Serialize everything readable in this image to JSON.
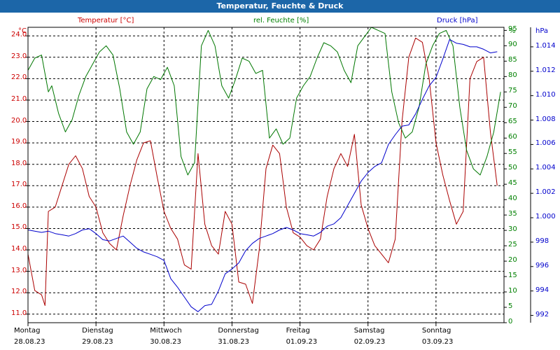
{
  "window": {
    "title": "Temperatur, Feuchte & Druck"
  },
  "chart_data": {
    "type": "line",
    "title": "Temperatur, Feuchte & Druck",
    "x_categories": [
      {
        "day": "Montag",
        "date": "28.08.23"
      },
      {
        "day": "Dienstag",
        "date": "29.08.23"
      },
      {
        "day": "Mittwoch",
        "date": "30.08.23"
      },
      {
        "day": "Donnerstag",
        "date": "31.08.23"
      },
      {
        "day": "Freitag",
        "date": "01.09.23"
      },
      {
        "day": "Samstag",
        "date": "02.09.23"
      },
      {
        "day": "Sonntag",
        "date": "03.09.23"
      }
    ],
    "x_range_days": [
      0,
      7
    ],
    "grid": true,
    "axes": {
      "temperature": {
        "label": "Temperatur [°C]",
        "unit": "°C",
        "range": [
          10.6,
          24.4
        ],
        "ticks": [
          "11.0",
          "12.0",
          "13.0",
          "14.0",
          "15.0",
          "16.0",
          "17.0",
          "18.0",
          "19.0",
          "20.0",
          "21.0",
          "22.0",
          "23.0",
          "24.0"
        ],
        "color": "#cc0000"
      },
      "humidity": {
        "label": "rel. Feuchte [%]",
        "unit": "%",
        "range": [
          0,
          96
        ],
        "ticks": [
          "0",
          "5",
          "10",
          "15",
          "20",
          "25",
          "30",
          "35",
          "40",
          "45",
          "50",
          "55",
          "60",
          "65",
          "70",
          "75",
          "80",
          "85",
          "90",
          "95"
        ],
        "color": "#008000"
      },
      "pressure": {
        "label": "Druck [hPa]",
        "unit": "hPa",
        "range": [
          991.4,
          1015.6
        ],
        "ticks": [
          "992",
          "994",
          "996",
          "998",
          "1.000",
          "1.002",
          "1.004",
          "1.006",
          "1.008",
          "1.010",
          "1.012",
          "1.014"
        ],
        "color": "#0000cc"
      }
    },
    "series": [
      {
        "name": "Temperatur [°C]",
        "color": "#aa0000",
        "x": [
          0,
          0.1,
          0.2,
          0.25,
          0.3,
          0.4,
          0.5,
          0.6,
          0.7,
          0.8,
          0.9,
          1.0,
          1.1,
          1.2,
          1.3,
          1.4,
          1.5,
          1.6,
          1.7,
          1.8,
          1.9,
          2.0,
          2.1,
          2.2,
          2.3,
          2.4,
          2.5,
          2.6,
          2.7,
          2.8,
          2.9,
          3.0,
          3.1,
          3.2,
          3.3,
          3.4,
          3.5,
          3.6,
          3.7,
          3.8,
          3.9,
          4.0,
          4.1,
          4.2,
          4.3,
          4.4,
          4.5,
          4.6,
          4.7,
          4.8,
          4.9,
          5.0,
          5.1,
          5.2,
          5.3,
          5.4,
          5.5,
          5.6,
          5.7,
          5.8,
          5.9,
          6.0,
          6.1,
          6.2,
          6.3,
          6.4,
          6.5,
          6.6,
          6.7,
          6.8,
          6.9
        ],
        "values": [
          13.8,
          12.1,
          11.9,
          11.4,
          15.8,
          16.0,
          17.0,
          18.0,
          18.4,
          17.8,
          16.5,
          16.0,
          14.8,
          14.3,
          14.0,
          15.6,
          17.0,
          18.2,
          19.0,
          19.1,
          17.4,
          15.8,
          15.0,
          14.5,
          13.3,
          13.1,
          18.5,
          15.2,
          14.2,
          13.8,
          15.8,
          15.2,
          12.5,
          12.4,
          11.5,
          14.0,
          17.8,
          18.9,
          18.5,
          16.0,
          14.8,
          14.6,
          14.2,
          14.0,
          14.5,
          16.5,
          17.8,
          18.5,
          17.9,
          19.4,
          16.1,
          15.0,
          14.2,
          13.8,
          13.4,
          14.5,
          20.0,
          23.0,
          23.9,
          23.7,
          22.0,
          19.0,
          17.5,
          16.3,
          15.2,
          15.8,
          22.0,
          22.8,
          23.0,
          19.5,
          17.0
        ]
      },
      {
        "name": "rel. Feuchte [%]",
        "color": "#007700",
        "x": [
          0,
          0.1,
          0.2,
          0.3,
          0.35,
          0.45,
          0.55,
          0.65,
          0.75,
          0.85,
          0.95,
          1.05,
          1.15,
          1.25,
          1.35,
          1.45,
          1.55,
          1.65,
          1.75,
          1.85,
          1.95,
          2.05,
          2.15,
          2.25,
          2.35,
          2.45,
          2.55,
          2.65,
          2.75,
          2.85,
          2.95,
          3.05,
          3.15,
          3.25,
          3.35,
          3.45,
          3.55,
          3.65,
          3.75,
          3.85,
          3.95,
          4.05,
          4.15,
          4.25,
          4.35,
          4.45,
          4.55,
          4.65,
          4.75,
          4.85,
          4.95,
          5.05,
          5.15,
          5.25,
          5.35,
          5.45,
          5.55,
          5.65,
          5.75,
          5.85,
          5.95,
          6.05,
          6.15,
          6.25,
          6.35,
          6.45,
          6.55,
          6.65,
          6.75,
          6.85,
          6.95
        ],
        "values": [
          82,
          86,
          87,
          75,
          77,
          68,
          62,
          66,
          74,
          80,
          84,
          88,
          90,
          87,
          76,
          62,
          58,
          62,
          76,
          80,
          79,
          83,
          77,
          54,
          48,
          52,
          90,
          95,
          90,
          77,
          73,
          79,
          86,
          85,
          81,
          82,
          60,
          63,
          58,
          60,
          73,
          77,
          80,
          86,
          91,
          90,
          88,
          82,
          78,
          90,
          93,
          96,
          95,
          94,
          75,
          65,
          60,
          62,
          70,
          84,
          90,
          94,
          95,
          90,
          70,
          56,
          50,
          48,
          54,
          62,
          75
        ]
      },
      {
        "name": "Druck [hPa]",
        "color": "#0000cc",
        "x": [
          0,
          0.1,
          0.2,
          0.3,
          0.4,
          0.5,
          0.6,
          0.7,
          0.8,
          0.9,
          1.0,
          1.1,
          1.2,
          1.3,
          1.4,
          1.5,
          1.6,
          1.7,
          1.8,
          1.9,
          2.0,
          2.1,
          2.2,
          2.3,
          2.4,
          2.5,
          2.6,
          2.7,
          2.8,
          2.9,
          3.0,
          3.1,
          3.2,
          3.3,
          3.4,
          3.5,
          3.6,
          3.7,
          3.8,
          3.9,
          4.0,
          4.1,
          4.2,
          4.3,
          4.4,
          4.5,
          4.6,
          4.7,
          4.8,
          4.9,
          5.0,
          5.1,
          5.2,
          5.3,
          5.4,
          5.5,
          5.6,
          5.7,
          5.8,
          5.9,
          6.0,
          6.1,
          6.2,
          6.3,
          6.4,
          6.5,
          6.6,
          6.7,
          6.8,
          6.9
        ],
        "values": [
          999.0,
          998.9,
          998.8,
          998.9,
          998.7,
          998.6,
          998.5,
          998.7,
          999.0,
          999.1,
          998.7,
          998.2,
          998.1,
          998.3,
          998.5,
          998.0,
          997.5,
          997.2,
          997.0,
          996.8,
          996.5,
          995.0,
          994.3,
          993.5,
          992.7,
          992.3,
          992.8,
          992.9,
          994.0,
          995.4,
          995.8,
          996.3,
          997.3,
          997.9,
          998.3,
          998.5,
          998.7,
          999.0,
          999.2,
          999.0,
          998.7,
          998.6,
          998.5,
          998.8,
          999.3,
          999.5,
          1000.0,
          1001.0,
          1002.0,
          1003.0,
          1003.7,
          1004.2,
          1004.5,
          1006.0,
          1006.8,
          1007.5,
          1007.6,
          1008.5,
          1009.7,
          1010.8,
          1011.5,
          1013.0,
          1014.6,
          1014.3,
          1014.2,
          1014.0,
          1014.0,
          1013.8,
          1013.5,
          1013.6
        ]
      }
    ]
  }
}
